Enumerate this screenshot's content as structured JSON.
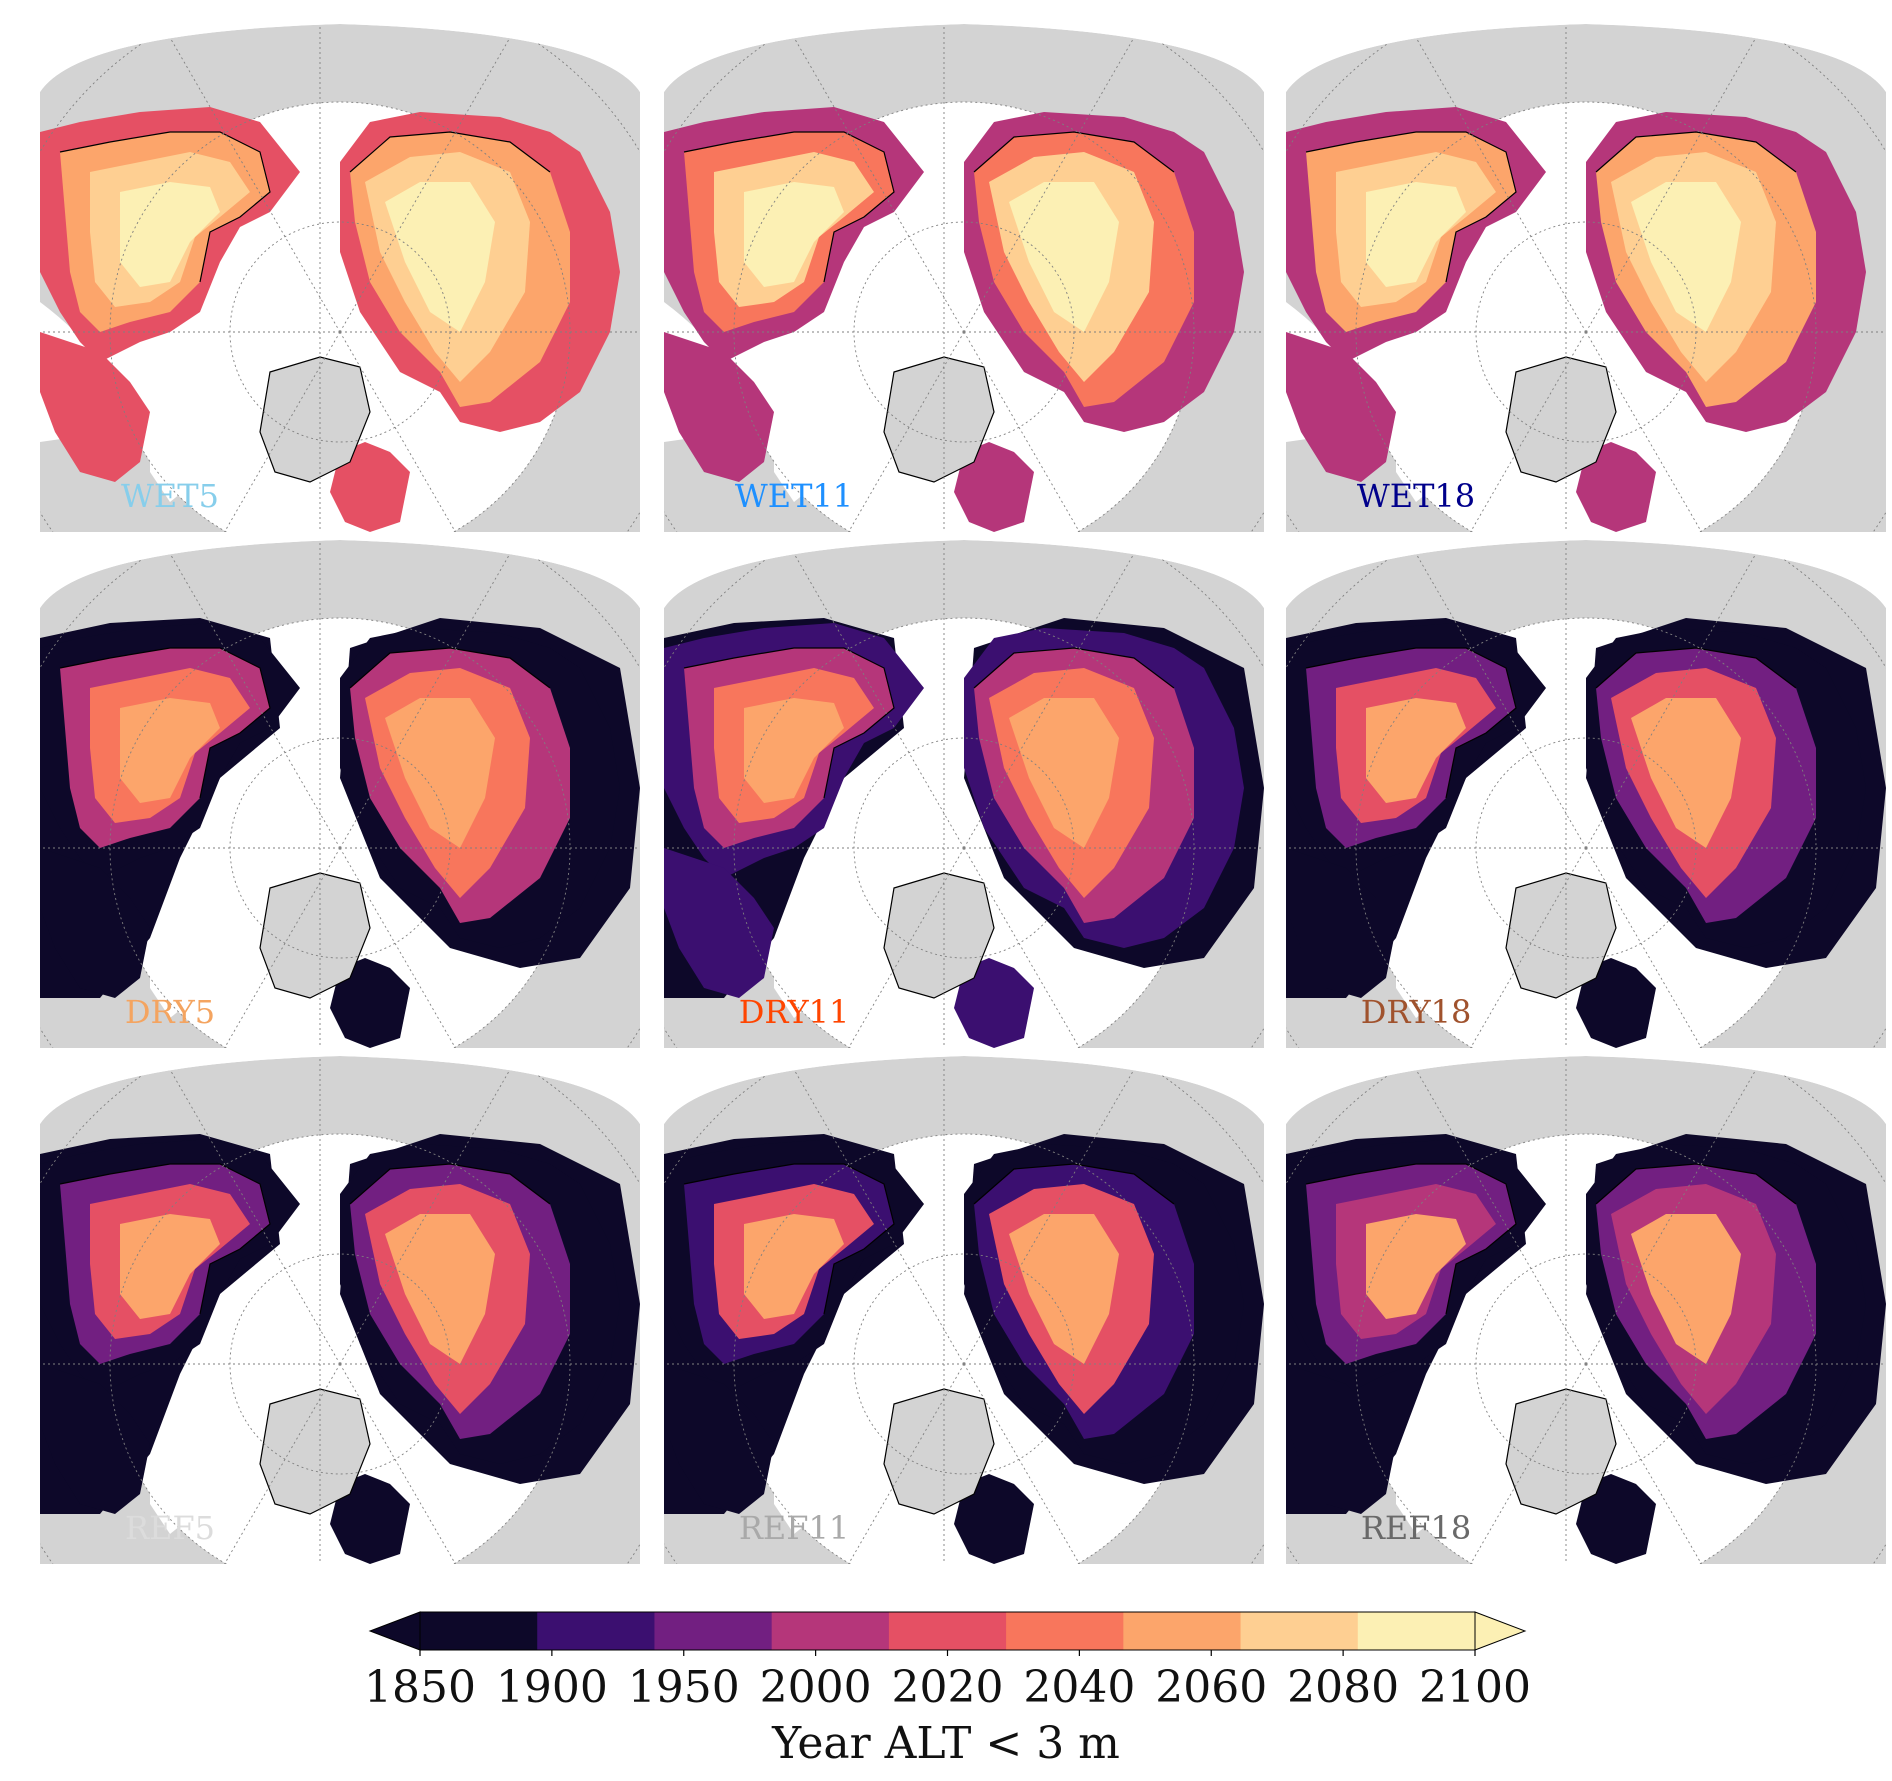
{
  "panels": [
    {
      "label": "WET5",
      "label_color": "#87ceeb",
      "scenario": "wet",
      "index": 0
    },
    {
      "label": "WET11",
      "label_color": "#1e90ff",
      "scenario": "wet",
      "index": 1
    },
    {
      "label": "WET18",
      "label_color": "#00008b",
      "scenario": "wet",
      "index": 2
    },
    {
      "label": "DRY5",
      "label_color": "#f4a460",
      "scenario": "dry",
      "index": 0
    },
    {
      "label": "DRY11",
      "label_color": "#ff4500",
      "scenario": "dry",
      "index": 1
    },
    {
      "label": "DRY18",
      "label_color": "#a0522d",
      "scenario": "dry",
      "index": 2
    },
    {
      "label": "REF5",
      "label_color": "#dcdcdc",
      "scenario": "ref",
      "index": 0
    },
    {
      "label": "REF11",
      "label_color": "#a9a9a9",
      "scenario": "ref",
      "index": 1
    },
    {
      "label": "REF18",
      "label_color": "#696969",
      "scenario": "ref",
      "index": 2
    }
  ],
  "colorbar": {
    "ticks": [
      "1850",
      "1900",
      "1950",
      "2000",
      "2020",
      "2040",
      "2060",
      "2080",
      "2100"
    ],
    "colors": [
      "#0d0829",
      "#3b0f70",
      "#721f81",
      "#b5367a",
      "#e55064",
      "#f8765c",
      "#fca56b",
      "#fecf92",
      "#fcf0b4"
    ],
    "extend": "both",
    "label": "Year ALT < 3 m"
  },
  "map_colors": {
    "ocean": "#ffffff",
    "land": "#d3d3d3",
    "coast": "#000000",
    "gridline": "#7f7f7f"
  }
}
